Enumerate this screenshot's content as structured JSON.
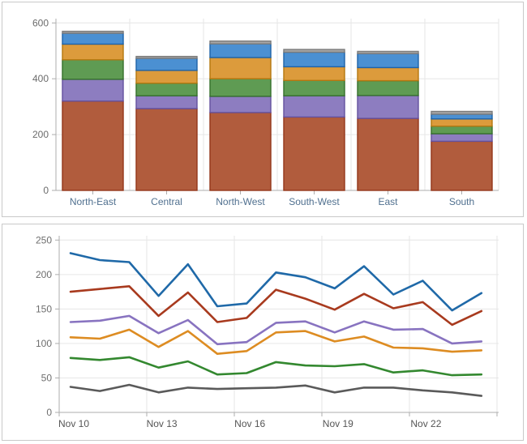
{
  "page": {
    "background": "#ffffff"
  },
  "chart_data": [
    {
      "type": "bar",
      "stacked": true,
      "title": "",
      "xlabel": "",
      "ylabel": "",
      "categories": [
        "North-East",
        "Central",
        "North-West",
        "South-West",
        "East",
        "South"
      ],
      "series": [
        {
          "name": "brown",
          "color": "#b15c3d",
          "border": "#93361a",
          "values": [
            320,
            293,
            279,
            263,
            258,
            176
          ]
        },
        {
          "name": "purple",
          "color": "#8d7dc0",
          "border": "#64519e",
          "values": [
            78,
            46,
            58,
            76,
            82,
            27
          ]
        },
        {
          "name": "green",
          "color": "#5f9b53",
          "border": "#35702c",
          "values": [
            70,
            45,
            63,
            55,
            53,
            27
          ]
        },
        {
          "name": "orange",
          "color": "#dc9b3c",
          "border": "#b5770f",
          "values": [
            56,
            46,
            76,
            49,
            47,
            26
          ]
        },
        {
          "name": "blue",
          "color": "#4b90d2",
          "border": "#1f63a8",
          "values": [
            39,
            43,
            49,
            52,
            50,
            17
          ]
        },
        {
          "name": "gray",
          "color": "#a5a5a5",
          "border": "#7c7c7c",
          "values": [
            7,
            7,
            10,
            10,
            8,
            10
          ]
        }
      ],
      "y_ticks": [
        0,
        200,
        400,
        600
      ],
      "y_tick_labels": [
        "0",
        "200",
        "400",
        "600"
      ],
      "ylim": [
        0,
        600
      ],
      "grid": true,
      "legend": "none",
      "grid_color": "#e6e6e6",
      "axis_color": "#adadad",
      "y_label_color": "#6b6b6b",
      "category_label_color": "#50708f"
    },
    {
      "type": "line",
      "title": "",
      "xlabel": "",
      "ylabel": "",
      "x": [
        "Nov 10",
        "Nov 11",
        "Nov 12",
        "Nov 13",
        "Nov 14",
        "Nov 15",
        "Nov 16",
        "Nov 17",
        "Nov 18",
        "Nov 19",
        "Nov 20",
        "Nov 21",
        "Nov 22",
        "Nov 23",
        "Nov 24"
      ],
      "x_labels_shown": [
        "Nov 10",
        "Nov 13",
        "Nov 16",
        "Nov 19",
        "Nov 22"
      ],
      "x_label_every": 3,
      "series": [
        {
          "name": "blue",
          "color": "#1f69a8",
          "values": [
            231,
            221,
            218,
            169,
            215,
            154,
            158,
            203,
            196,
            180,
            212,
            171,
            191,
            148,
            173
          ]
        },
        {
          "name": "red",
          "color": "#a83a1e",
          "values": [
            175,
            179,
            183,
            140,
            174,
            131,
            137,
            178,
            165,
            149,
            172,
            151,
            160,
            127,
            147
          ]
        },
        {
          "name": "purple",
          "color": "#8873c0",
          "values": [
            131,
            133,
            140,
            115,
            134,
            99,
            102,
            130,
            132,
            116,
            132,
            120,
            121,
            100,
            103
          ]
        },
        {
          "name": "orange",
          "color": "#dd8c22",
          "values": [
            109,
            107,
            120,
            95,
            118,
            85,
            89,
            116,
            118,
            103,
            110,
            94,
            93,
            88,
            90
          ]
        },
        {
          "name": "green",
          "color": "#33882f",
          "values": [
            79,
            76,
            80,
            65,
            74,
            55,
            57,
            73,
            68,
            67,
            70,
            58,
            61,
            54,
            55
          ]
        },
        {
          "name": "gray",
          "color": "#5a5a5a",
          "values": [
            37,
            31,
            40,
            29,
            36,
            34,
            35,
            36,
            39,
            29,
            36,
            36,
            32,
            29,
            24
          ]
        }
      ],
      "y_ticks": [
        0,
        50,
        100,
        150,
        200,
        250
      ],
      "y_tick_labels": [
        "0",
        "50",
        "100",
        "150",
        "200",
        "250"
      ],
      "ylim": [
        0,
        250
      ],
      "grid": true,
      "legend": "none",
      "grid_color": "#e6e6e6",
      "axis_color": "#adadad",
      "y_label_color": "#6e6e6e",
      "x_label_color": "#555555"
    }
  ]
}
